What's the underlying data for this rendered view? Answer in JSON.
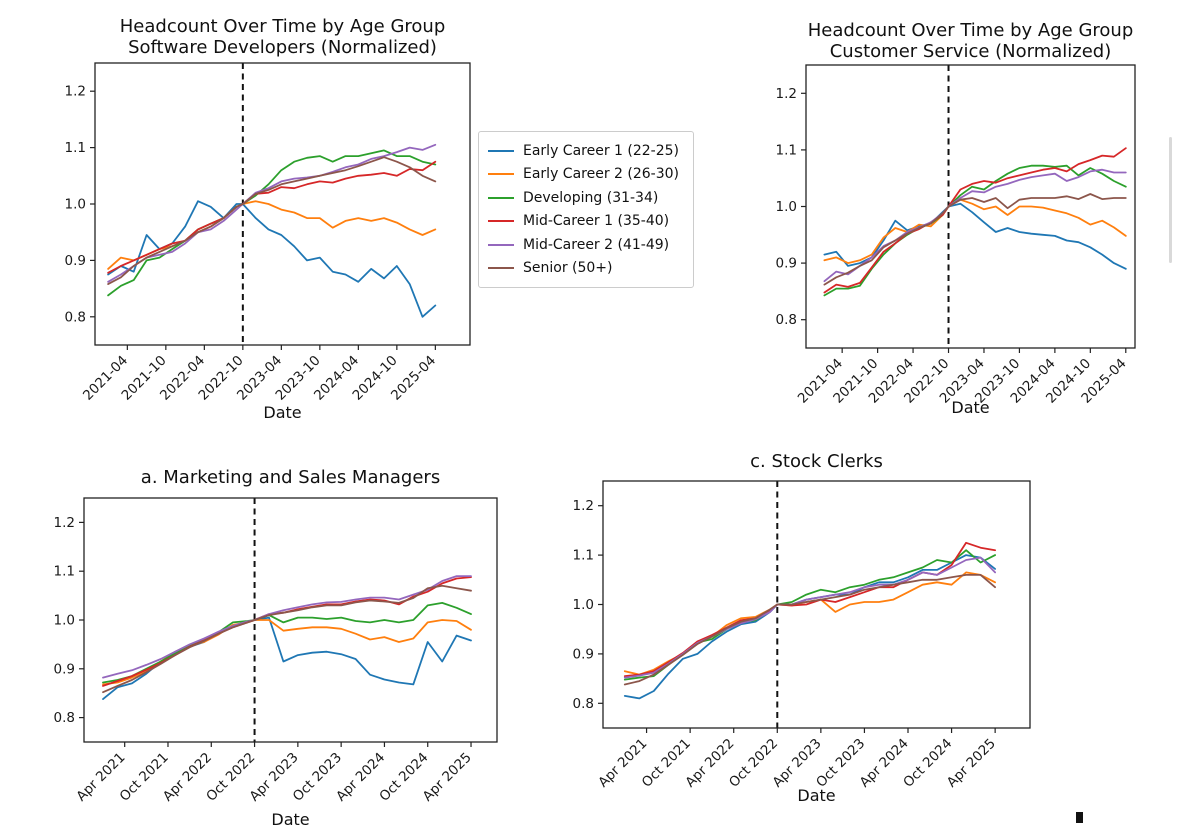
{
  "figure": {
    "background": "#ffffff",
    "text_color": "#1a1a1a",
    "axis_color": "#222222"
  },
  "legend": {
    "items": [
      {
        "label": "Early Career 1 (22-25)",
        "color": "#1f77b4"
      },
      {
        "label": "Early Career 2 (26-30)",
        "color": "#ff7f0e"
      },
      {
        "label": "Developing (31-34)",
        "color": "#2ca02c"
      },
      {
        "label": "Mid-Career 1 (35-40)",
        "color": "#d62728"
      },
      {
        "label": "Mid-Career 2 (41-49)",
        "color": "#9467bd"
      },
      {
        "label": "Senior (50+)",
        "color": "#8c564b"
      }
    ]
  },
  "time_axis": {
    "dates": [
      "2021-01",
      "2021-03",
      "2021-05",
      "2021-07",
      "2021-09",
      "2021-11",
      "2022-01",
      "2022-03",
      "2022-05",
      "2022-07",
      "2022-09",
      "2022-10",
      "2022-12",
      "2023-02",
      "2023-04",
      "2023-06",
      "2023-08",
      "2023-10",
      "2023-12",
      "2024-02",
      "2024-04",
      "2024-06",
      "2024-08",
      "2024-10",
      "2024-12",
      "2025-02",
      "2025-04"
    ],
    "x": [
      2021.0,
      2021.167,
      2021.333,
      2021.5,
      2021.667,
      2021.833,
      2022.0,
      2022.167,
      2022.333,
      2022.5,
      2022.667,
      2022.75,
      2022.917,
      2023.083,
      2023.25,
      2023.417,
      2023.583,
      2023.75,
      2023.917,
      2024.083,
      2024.25,
      2024.417,
      2024.583,
      2024.75,
      2024.917,
      2025.083,
      2025.25
    ],
    "tick_x": [
      2021.25,
      2021.75,
      2022.25,
      2022.75,
      2023.25,
      2023.75,
      2024.25,
      2024.75,
      2025.25
    ]
  },
  "chart_data": [
    {
      "id": "software-developers",
      "type": "line",
      "title": [
        "Headcount Over Time by Age Group",
        "Software Developers (Normalized)"
      ],
      "xlabel": "Date",
      "ylim": [
        0.75,
        1.25
      ],
      "yticks": [
        0.8,
        0.9,
        1.0,
        1.1,
        1.2
      ],
      "xlim": [
        2020.83,
        2025.7
      ],
      "xtick_labels": [
        "2021-04",
        "2021-10",
        "2022-04",
        "2022-10",
        "2023-04",
        "2023-10",
        "2024-04",
        "2024-10",
        "2025-04"
      ],
      "vline_x": 2022.75,
      "grid": false,
      "series": [
        {
          "name": "Early Career 1 (22-25)",
          "color": "#1f77b4",
          "values": [
            0.875,
            0.89,
            0.88,
            0.945,
            0.92,
            0.93,
            0.96,
            1.005,
            0.995,
            0.975,
            1.0,
            1.0,
            0.975,
            0.955,
            0.945,
            0.925,
            0.9,
            0.905,
            0.88,
            0.875,
            0.862,
            0.885,
            0.868,
            0.89,
            0.858,
            0.8,
            0.82
          ]
        },
        {
          "name": "Early Career 2 (26-30)",
          "color": "#ff7f0e",
          "values": [
            0.885,
            0.905,
            0.9,
            0.91,
            0.92,
            0.925,
            0.935,
            0.95,
            0.96,
            0.975,
            0.995,
            1.0,
            1.005,
            1.0,
            0.99,
            0.985,
            0.975,
            0.975,
            0.958,
            0.97,
            0.975,
            0.97,
            0.975,
            0.967,
            0.955,
            0.945,
            0.955
          ]
        },
        {
          "name": "Developing (31-34)",
          "color": "#2ca02c",
          "values": [
            0.838,
            0.855,
            0.865,
            0.9,
            0.905,
            0.92,
            0.935,
            0.955,
            0.965,
            0.975,
            0.995,
            1.0,
            1.015,
            1.035,
            1.06,
            1.075,
            1.082,
            1.085,
            1.075,
            1.085,
            1.085,
            1.09,
            1.095,
            1.085,
            1.085,
            1.075,
            1.07
          ]
        },
        {
          "name": "Mid-Career 1 (35-40)",
          "color": "#d62728",
          "values": [
            0.878,
            0.89,
            0.9,
            0.91,
            0.92,
            0.93,
            0.935,
            0.955,
            0.965,
            0.975,
            0.995,
            1.0,
            1.018,
            1.02,
            1.03,
            1.028,
            1.035,
            1.04,
            1.038,
            1.045,
            1.05,
            1.052,
            1.055,
            1.05,
            1.062,
            1.06,
            1.075
          ]
        },
        {
          "name": "Mid-Career 2 (41-49)",
          "color": "#9467bd",
          "values": [
            0.862,
            0.875,
            0.89,
            0.905,
            0.91,
            0.915,
            0.93,
            0.95,
            0.955,
            0.97,
            0.99,
            1.0,
            1.02,
            1.028,
            1.04,
            1.045,
            1.047,
            1.05,
            1.057,
            1.065,
            1.07,
            1.08,
            1.085,
            1.092,
            1.1,
            1.096,
            1.105
          ]
        },
        {
          "name": "Senior (50+)",
          "color": "#8c564b",
          "values": [
            0.858,
            0.87,
            0.89,
            0.905,
            0.915,
            0.925,
            0.935,
            0.95,
            0.96,
            0.975,
            0.995,
            1.0,
            1.018,
            1.025,
            1.035,
            1.04,
            1.045,
            1.05,
            1.055,
            1.06,
            1.067,
            1.075,
            1.083,
            1.075,
            1.065,
            1.05,
            1.04
          ]
        }
      ]
    },
    {
      "id": "customer-service",
      "type": "line",
      "title": [
        "Headcount Over Time by Age Group",
        "Customer Service (Normalized)"
      ],
      "xlabel": "Date",
      "ylim": [
        0.75,
        1.25
      ],
      "yticks": [
        0.8,
        0.9,
        1.0,
        1.1,
        1.2
      ],
      "xlim": [
        2020.74,
        2025.38
      ],
      "xtick_labels": [
        "2021-04",
        "2021-10",
        "2022-04",
        "2022-10",
        "2023-04",
        "2023-10",
        "2024-04",
        "2024-10",
        "2025-04"
      ],
      "vline_x": 2022.75,
      "grid": false,
      "series": [
        {
          "name": "Early Career 1 (22-25)",
          "color": "#1f77b4",
          "values": [
            0.915,
            0.92,
            0.895,
            0.9,
            0.91,
            0.94,
            0.975,
            0.958,
            0.965,
            0.97,
            0.99,
            1.0,
            1.005,
            0.99,
            0.972,
            0.955,
            0.962,
            0.955,
            0.952,
            0.95,
            0.948,
            0.94,
            0.937,
            0.928,
            0.915,
            0.9,
            0.89
          ]
        },
        {
          "name": "Early Career 2 (26-30)",
          "color": "#ff7f0e",
          "values": [
            0.905,
            0.91,
            0.9,
            0.905,
            0.915,
            0.945,
            0.962,
            0.955,
            0.968,
            0.965,
            0.985,
            1.0,
            1.012,
            1.005,
            0.995,
            1.0,
            0.985,
            1.0,
            1.0,
            0.998,
            0.993,
            0.988,
            0.98,
            0.968,
            0.975,
            0.963,
            0.948
          ]
        },
        {
          "name": "Developing (31-34)",
          "color": "#2ca02c",
          "values": [
            0.843,
            0.855,
            0.855,
            0.86,
            0.89,
            0.915,
            0.935,
            0.95,
            0.962,
            0.97,
            0.985,
            1.0,
            1.02,
            1.035,
            1.03,
            1.045,
            1.058,
            1.068,
            1.072,
            1.072,
            1.07,
            1.072,
            1.055,
            1.068,
            1.058,
            1.045,
            1.035
          ]
        },
        {
          "name": "Mid-Career 1 (35-40)",
          "color": "#d62728",
          "values": [
            0.848,
            0.862,
            0.858,
            0.865,
            0.892,
            0.92,
            0.935,
            0.952,
            0.96,
            0.972,
            0.985,
            1.0,
            1.03,
            1.04,
            1.045,
            1.042,
            1.05,
            1.055,
            1.06,
            1.065,
            1.068,
            1.062,
            1.075,
            1.082,
            1.09,
            1.088,
            1.103
          ]
        },
        {
          "name": "Mid-Career 2 (41-49)",
          "color": "#9467bd",
          "values": [
            0.868,
            0.885,
            0.88,
            0.895,
            0.91,
            0.93,
            0.94,
            0.955,
            0.963,
            0.972,
            0.988,
            1.0,
            1.015,
            1.027,
            1.025,
            1.035,
            1.04,
            1.047,
            1.052,
            1.055,
            1.058,
            1.045,
            1.052,
            1.062,
            1.065,
            1.06,
            1.06
          ]
        },
        {
          "name": "Senior (50+)",
          "color": "#8c564b",
          "values": [
            0.862,
            0.875,
            0.883,
            0.895,
            0.905,
            0.928,
            0.94,
            0.952,
            0.962,
            0.97,
            0.988,
            1.0,
            1.012,
            1.015,
            1.008,
            1.015,
            0.997,
            1.012,
            1.015,
            1.015,
            1.015,
            1.018,
            1.013,
            1.022,
            1.013,
            1.015,
            1.015
          ]
        }
      ]
    },
    {
      "id": "marketing-and-sales-managers",
      "type": "line",
      "title": [
        "a. Marketing and Sales Managers"
      ],
      "xlabel": "Date",
      "ylim": [
        0.75,
        1.25
      ],
      "yticks": [
        0.8,
        0.9,
        1.0,
        1.1,
        1.2
      ],
      "xlim": [
        2020.78,
        2025.55
      ],
      "xtick_labels": [
        "Apr 2021",
        "Oct 2021",
        "Apr 2022",
        "Oct 2022",
        "Apr 2023",
        "Oct 2023",
        "Apr 2024",
        "Oct 2024",
        "Apr 2025"
      ],
      "vline_x": 2022.75,
      "grid": false,
      "series": [
        {
          "name": "Early Career 1 (22-25)",
          "color": "#1f77b4",
          "values": [
            0.838,
            0.862,
            0.87,
            0.89,
            0.915,
            0.93,
            0.945,
            0.955,
            0.975,
            0.985,
            0.995,
            1.0,
            1.005,
            0.915,
            0.928,
            0.933,
            0.935,
            0.93,
            0.92,
            0.888,
            0.878,
            0.872,
            0.868,
            0.955,
            0.915,
            0.968,
            0.958
          ]
        },
        {
          "name": "Early Career 2 (26-30)",
          "color": "#ff7f0e",
          "values": [
            0.868,
            0.872,
            0.882,
            0.895,
            0.915,
            0.935,
            0.948,
            0.955,
            0.97,
            0.99,
            0.995,
            1.0,
            1.0,
            0.978,
            0.982,
            0.985,
            0.985,
            0.982,
            0.972,
            0.96,
            0.965,
            0.955,
            0.962,
            0.995,
            1.0,
            0.998,
            0.98
          ]
        },
        {
          "name": "Developing (31-34)",
          "color": "#2ca02c",
          "values": [
            0.872,
            0.877,
            0.885,
            0.9,
            0.915,
            0.932,
            0.948,
            0.96,
            0.975,
            0.995,
            0.998,
            1.0,
            1.01,
            0.995,
            1.005,
            1.005,
            1.002,
            1.005,
            0.998,
            0.995,
            1.0,
            0.995,
            1.0,
            1.03,
            1.035,
            1.025,
            1.012
          ]
        },
        {
          "name": "Mid-Career 1 (35-40)",
          "color": "#d62728",
          "values": [
            0.865,
            0.875,
            0.885,
            0.898,
            0.912,
            0.928,
            0.945,
            0.958,
            0.972,
            0.985,
            0.995,
            1.0,
            1.012,
            1.015,
            1.022,
            1.027,
            1.032,
            1.032,
            1.038,
            1.042,
            1.04,
            1.032,
            1.048,
            1.058,
            1.075,
            1.085,
            1.088
          ]
        },
        {
          "name": "Mid-Career 2 (41-49)",
          "color": "#9467bd",
          "values": [
            0.882,
            0.89,
            0.897,
            0.908,
            0.92,
            0.935,
            0.95,
            0.962,
            0.976,
            0.988,
            0.997,
            1.0,
            1.012,
            1.02,
            1.026,
            1.032,
            1.036,
            1.037,
            1.042,
            1.046,
            1.046,
            1.042,
            1.052,
            1.062,
            1.08,
            1.09,
            1.09
          ]
        },
        {
          "name": "Senior (50+)",
          "color": "#8c564b",
          "values": [
            0.852,
            0.865,
            0.877,
            0.893,
            0.91,
            0.928,
            0.944,
            0.957,
            0.972,
            0.985,
            0.995,
            1.0,
            1.01,
            1.015,
            1.02,
            1.026,
            1.03,
            1.03,
            1.036,
            1.04,
            1.038,
            1.035,
            1.045,
            1.065,
            1.07,
            1.065,
            1.06
          ]
        }
      ]
    },
    {
      "id": "stock-clerks",
      "type": "line",
      "title": [
        "c. Stock Clerks"
      ],
      "xlabel": "Date",
      "ylim": [
        0.75,
        1.25
      ],
      "yticks": [
        0.8,
        0.9,
        1.0,
        1.1,
        1.2
      ],
      "xlim": [
        2020.75,
        2025.65
      ],
      "xtick_labels": [
        "Apr 2021",
        "Oct 2021",
        "Apr 2022",
        "Oct 2022",
        "Apr 2023",
        "Oct 2023",
        "Apr 2024",
        "Oct 2024",
        "Apr 2025"
      ],
      "vline_x": 2022.75,
      "grid": false,
      "series": [
        {
          "name": "Early Career 1 (22-25)",
          "color": "#1f77b4",
          "values": [
            0.815,
            0.81,
            0.825,
            0.86,
            0.89,
            0.9,
            0.925,
            0.945,
            0.96,
            0.965,
            0.985,
            1.0,
            1.0,
            1.01,
            1.015,
            1.02,
            1.02,
            1.035,
            1.045,
            1.045,
            1.055,
            1.07,
            1.07,
            1.085,
            1.1,
            1.095,
            1.072
          ]
        },
        {
          "name": "Early Career 2 (26-30)",
          "color": "#ff7f0e",
          "values": [
            0.865,
            0.858,
            0.868,
            0.885,
            0.9,
            0.92,
            0.935,
            0.958,
            0.972,
            0.975,
            0.99,
            1.0,
            0.998,
            1.005,
            1.01,
            0.985,
            1.0,
            1.005,
            1.005,
            1.01,
            1.025,
            1.04,
            1.045,
            1.04,
            1.065,
            1.06,
            1.045
          ]
        },
        {
          "name": "Developing (31-34)",
          "color": "#2ca02c",
          "values": [
            0.848,
            0.852,
            0.855,
            0.878,
            0.9,
            0.923,
            0.93,
            0.95,
            0.965,
            0.968,
            0.988,
            1.0,
            1.005,
            1.02,
            1.03,
            1.025,
            1.035,
            1.04,
            1.05,
            1.055,
            1.065,
            1.075,
            1.09,
            1.085,
            1.11,
            1.085,
            1.1
          ]
        },
        {
          "name": "Mid-Career 1 (35-40)",
          "color": "#d62728",
          "values": [
            0.855,
            0.858,
            0.865,
            0.883,
            0.902,
            0.925,
            0.938,
            0.953,
            0.968,
            0.972,
            0.988,
            1.0,
            0.998,
            1.0,
            1.01,
            1.005,
            1.015,
            1.025,
            1.035,
            1.035,
            1.05,
            1.065,
            1.06,
            1.08,
            1.125,
            1.115,
            1.11
          ]
        },
        {
          "name": "Mid-Career 2 (41-49)",
          "color": "#9467bd",
          "values": [
            0.852,
            0.856,
            0.862,
            0.88,
            0.9,
            0.922,
            0.935,
            0.95,
            0.962,
            0.97,
            0.985,
            1.0,
            1.0,
            1.01,
            1.015,
            1.02,
            1.025,
            1.035,
            1.04,
            1.04,
            1.05,
            1.065,
            1.06,
            1.075,
            1.09,
            1.095,
            1.065
          ]
        },
        {
          "name": "Senior (50+)",
          "color": "#8c564b",
          "values": [
            0.838,
            0.845,
            0.858,
            0.878,
            0.898,
            0.92,
            0.935,
            0.952,
            0.965,
            0.972,
            0.99,
            1.0,
            1.0,
            1.005,
            1.01,
            1.015,
            1.02,
            1.03,
            1.035,
            1.04,
            1.045,
            1.05,
            1.05,
            1.055,
            1.06,
            1.06,
            1.035
          ]
        }
      ]
    }
  ],
  "artifacts": {
    "scrollbar_color": "#d9d9d9",
    "clipped_mark_color": "#121212"
  }
}
